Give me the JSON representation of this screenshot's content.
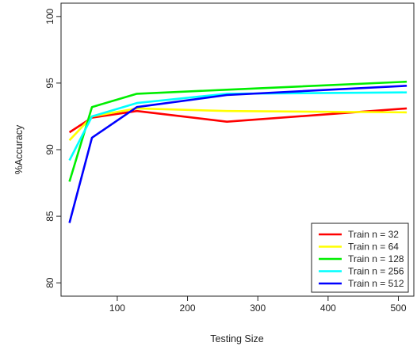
{
  "chart_data": {
    "type": "line",
    "title": "",
    "xlabel": "Testing Size",
    "ylabel": "%Accuracy",
    "xlim": [
      20,
      522
    ],
    "ylim": [
      79,
      101
    ],
    "xticks": [
      100,
      200,
      300,
      400,
      500
    ],
    "yticks": [
      80,
      85,
      90,
      95,
      100
    ],
    "grid": false,
    "legend_position": "bottom-right",
    "x": [
      32,
      64,
      128,
      256,
      512
    ],
    "series": [
      {
        "name": "Train n = 32",
        "color": "#ff0000",
        "values": [
          91.3,
          92.4,
          92.9,
          92.1,
          93.1
        ]
      },
      {
        "name": "Train n = 64",
        "color": "#ffff00",
        "values": [
          90.7,
          92.5,
          93.1,
          92.9,
          92.8
        ]
      },
      {
        "name": "Train n = 128",
        "color": "#00ee00",
        "values": [
          87.6,
          93.2,
          94.2,
          94.5,
          95.1
        ]
      },
      {
        "name": "Train n = 256",
        "color": "#00ffff",
        "values": [
          89.2,
          92.5,
          93.5,
          94.2,
          94.3
        ]
      },
      {
        "name": "Train n = 512",
        "color": "#0000ff",
        "values": [
          84.5,
          90.9,
          93.2,
          94.1,
          94.8
        ]
      }
    ]
  }
}
